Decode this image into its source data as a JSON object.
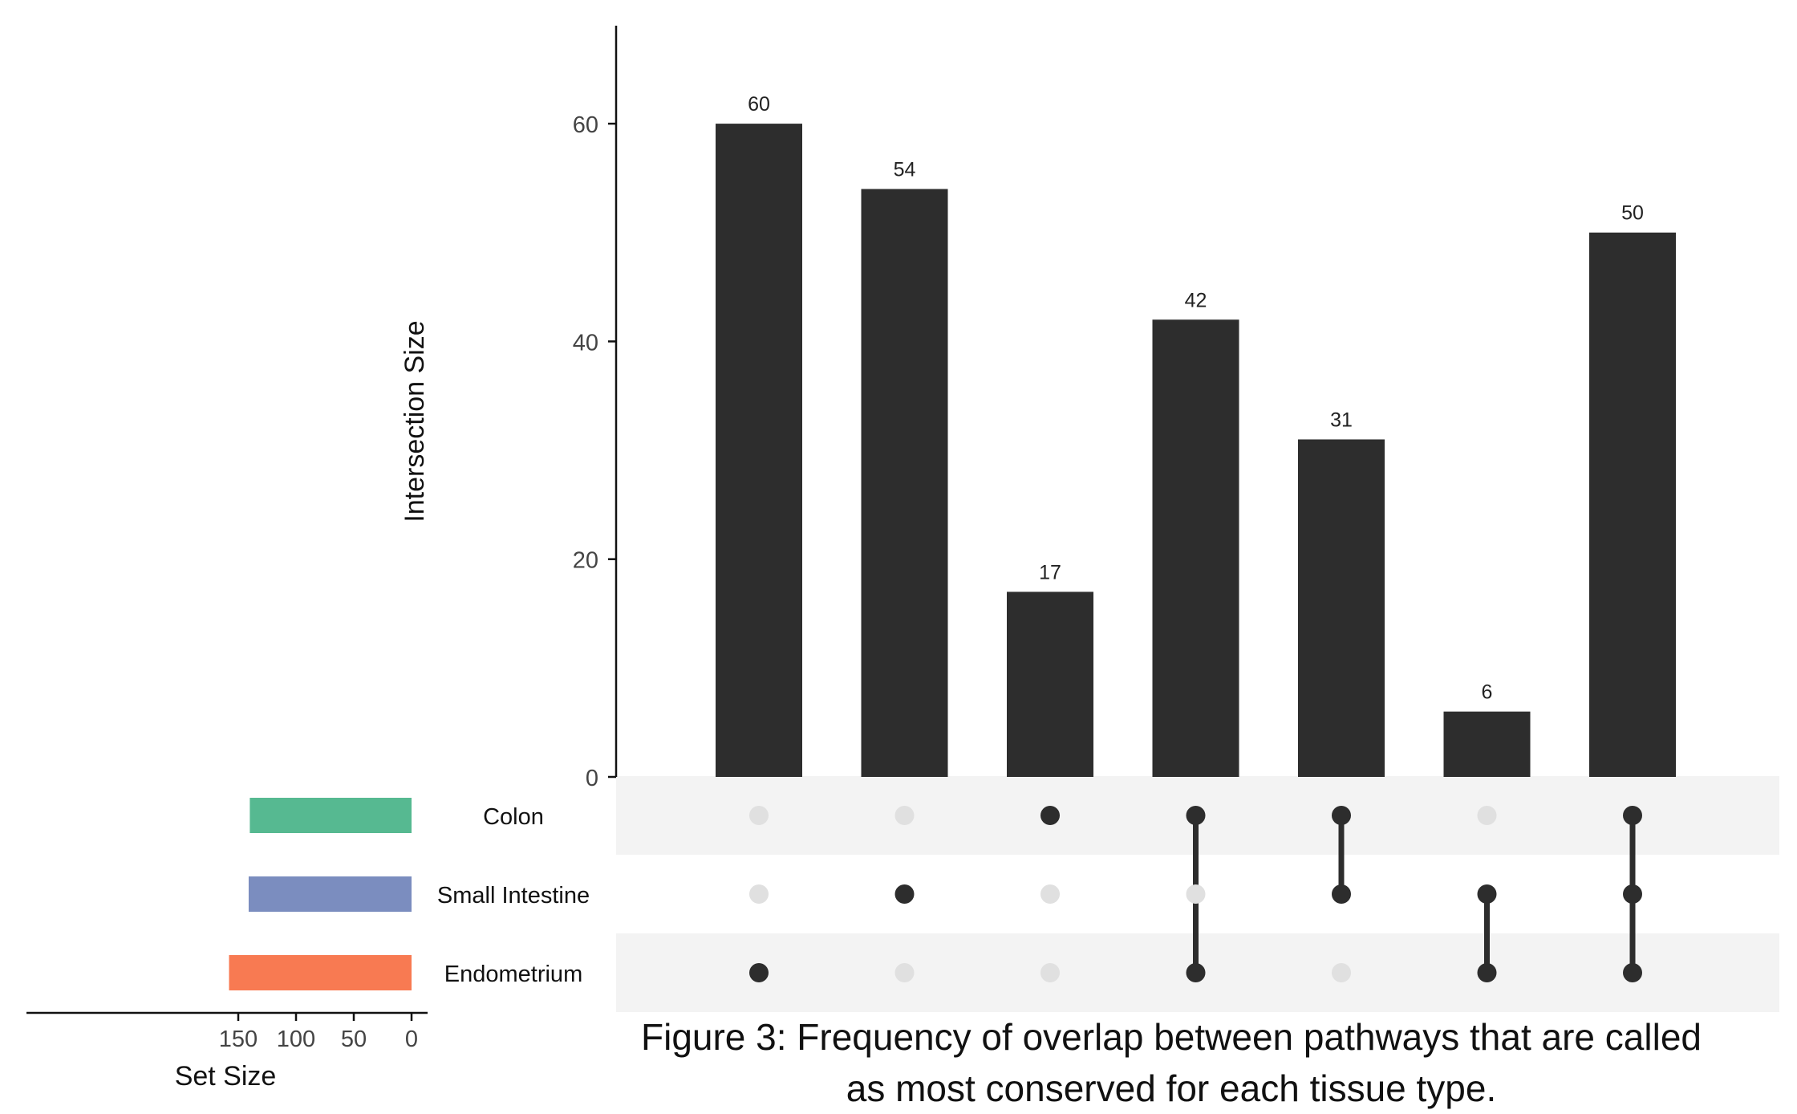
{
  "chart_data": {
    "type": "bar",
    "subtype": "upset",
    "intersections": [
      {
        "sets": [
          "Endometrium"
        ],
        "value": 60
      },
      {
        "sets": [
          "Small Intestine"
        ],
        "value": 54
      },
      {
        "sets": [
          "Colon"
        ],
        "value": 17
      },
      {
        "sets": [
          "Colon",
          "Endometrium"
        ],
        "value": 42
      },
      {
        "sets": [
          "Colon",
          "Small Intestine"
        ],
        "value": 31
      },
      {
        "sets": [
          "Small Intestine",
          "Endometrium"
        ],
        "value": 6
      },
      {
        "sets": [
          "Colon",
          "Small Intestine",
          "Endometrium"
        ],
        "value": 50
      }
    ],
    "value_labels": [
      "60",
      "54",
      "17",
      "42",
      "31",
      "6",
      "50"
    ],
    "ylabel": "Intersection Size",
    "ylim": [
      0,
      69
    ],
    "yticks": [
      0,
      20,
      40,
      60
    ],
    "ytick_labels": [
      "0",
      "20",
      "40",
      "60"
    ],
    "sets": [
      {
        "name": "Colon",
        "size": 140,
        "color": "#56B991"
      },
      {
        "name": "Small Intestine",
        "size": 141,
        "color": "#7B8DBF"
      },
      {
        "name": "Endometrium",
        "size": 158,
        "color": "#F87A52"
      }
    ],
    "set_size_xlabel": "Set Size",
    "set_size_xlim": [
      0,
      165
    ],
    "set_size_ticks": [
      150,
      100,
      50,
      0
    ],
    "set_size_tick_labels": [
      "150",
      "100",
      "50",
      "0"
    ],
    "bar_color": "#2D2D2D",
    "dot_inactive_color": "#E0E0E0",
    "stripe_color": "#F3F3F3",
    "grid": false
  },
  "caption": {
    "line1": "Figure 3: Frequency of overlap between pathways that are called",
    "line2": "as most conserved for each tissue type."
  }
}
